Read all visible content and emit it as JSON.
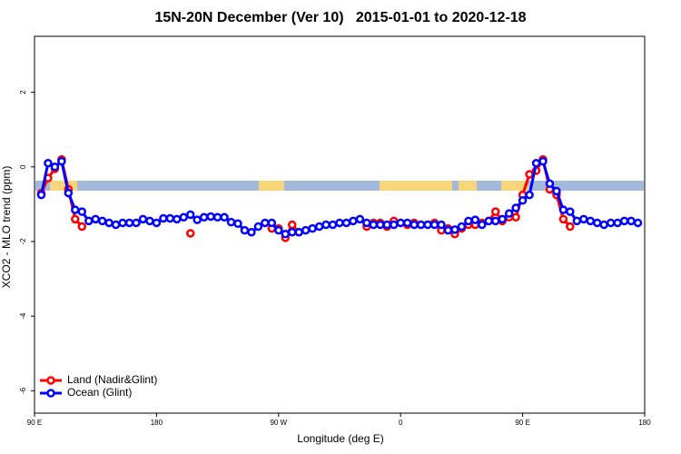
{
  "chart_data": {
    "type": "line",
    "title": "15N-20N December (Ver 10)   2015-01-01 to 2020-12-18",
    "xlabel": "Longitude (deg E)",
    "ylabel": "XCO2 - MLO trend (ppm)",
    "x": [
      95,
      100,
      105,
      110,
      115,
      120,
      125,
      130,
      135,
      140,
      145,
      150,
      155,
      160,
      165,
      170,
      175,
      180,
      185,
      190,
      195,
      200,
      205,
      210,
      215,
      220,
      225,
      230,
      235,
      240,
      245,
      250,
      255,
      260,
      265,
      270,
      275,
      280,
      285,
      290,
      295,
      300,
      305,
      310,
      315,
      320,
      325,
      330,
      335,
      340,
      345,
      350,
      355,
      360,
      365,
      370,
      375,
      380,
      385,
      390,
      395,
      400,
      405,
      410,
      415,
      420,
      425,
      430,
      435,
      440,
      445,
      450,
      455,
      460,
      465,
      470,
      475,
      480,
      485,
      490,
      495,
      500,
      505,
      510,
      515,
      520,
      525,
      530,
      535
    ],
    "series": [
      {
        "name": "Land (Nadir&Glint)",
        "color": "#ff0000",
        "values": [
          -0.7,
          -0.3,
          -0.05,
          0.2,
          -0.6,
          -1.4,
          -1.6,
          null,
          null,
          null,
          null,
          null,
          null,
          null,
          null,
          null,
          null,
          null,
          null,
          null,
          null,
          null,
          -1.78,
          null,
          null,
          null,
          null,
          null,
          null,
          null,
          null,
          null,
          null,
          null,
          -1.65,
          -1.65,
          -1.9,
          -1.55,
          -1.75,
          null,
          null,
          null,
          null,
          null,
          null,
          null,
          null,
          null,
          -1.6,
          -1.5,
          -1.5,
          -1.6,
          -1.45,
          -1.5,
          -1.55,
          -1.5,
          -1.55,
          -1.55,
          -1.5,
          -1.7,
          -1.65,
          -1.8,
          -1.65,
          -1.55,
          -1.55,
          -1.5,
          -1.45,
          -1.2,
          -1.45,
          -1.35,
          -1.35,
          -0.75,
          -0.2,
          -0.1,
          0.2,
          -0.6,
          -0.75,
          -1.4,
          -1.6,
          null,
          null,
          null,
          null,
          null,
          null,
          null,
          null,
          null,
          null
        ]
      },
      {
        "name": "Ocean (Glint)",
        "color": "#0000ff",
        "values": [
          -0.75,
          0.1,
          0.0,
          0.15,
          -0.7,
          -1.15,
          -1.2,
          -1.45,
          -1.4,
          -1.45,
          -1.5,
          -1.55,
          -1.5,
          -1.5,
          -1.5,
          -1.4,
          -1.45,
          -1.5,
          -1.38,
          -1.38,
          -1.4,
          -1.35,
          -1.28,
          -1.42,
          -1.35,
          -1.33,
          -1.35,
          -1.35,
          -1.48,
          -1.52,
          -1.7,
          -1.75,
          -1.6,
          -1.5,
          -1.5,
          -1.7,
          -1.8,
          -1.75,
          -1.75,
          -1.7,
          -1.65,
          -1.6,
          -1.55,
          -1.55,
          -1.5,
          -1.5,
          -1.45,
          -1.4,
          -1.5,
          -1.55,
          -1.55,
          -1.55,
          -1.55,
          -1.5,
          -1.5,
          -1.55,
          -1.55,
          -1.55,
          -1.55,
          -1.55,
          -1.7,
          -1.68,
          -1.6,
          -1.45,
          -1.42,
          -1.55,
          -1.45,
          -1.45,
          -1.4,
          -1.25,
          -1.1,
          -0.9,
          -0.75,
          0.1,
          0.15,
          -0.45,
          -0.65,
          -1.15,
          -1.2,
          -1.45,
          -1.4,
          -1.45,
          -1.5,
          -1.55,
          -1.5,
          -1.5,
          -1.45,
          -1.45,
          -1.5
        ]
      }
    ],
    "xlim": [
      90,
      540
    ],
    "xticks": [
      {
        "value": 90,
        "label": "90 E"
      },
      180,
      {
        "value": 270,
        "label": "90 W"
      },
      {
        "value": 360,
        "label": "0"
      },
      {
        "value": 450,
        "label": "90 E"
      },
      {
        "value": 540,
        "label": "180"
      }
    ],
    "ylim": [
      -6.6,
      3.5
    ],
    "yticks": [
      2,
      0,
      -2,
      -4,
      -6
    ],
    "legend": "bottom-left"
  }
}
